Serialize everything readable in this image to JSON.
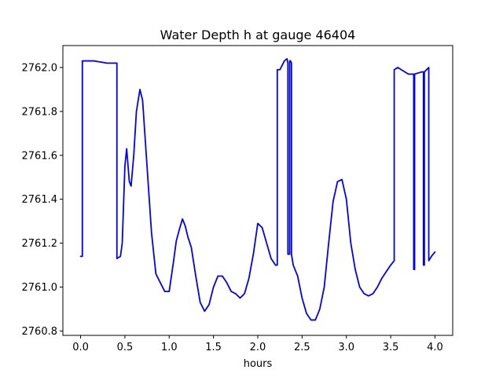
{
  "chart_data": {
    "type": "line",
    "title": "Water Depth h at gauge 46404",
    "xlabel": "hours",
    "ylabel": "",
    "xlim": [
      -0.2,
      4.2
    ],
    "ylim": [
      2760.78,
      2762.1
    ],
    "x_ticks": [
      0.0,
      0.5,
      1.0,
      1.5,
      2.0,
      2.5,
      3.0,
      3.5,
      4.0
    ],
    "x_tick_labels": [
      "0.0",
      "0.5",
      "1.0",
      "1.5",
      "2.0",
      "2.5",
      "3.0",
      "3.5",
      "4.0"
    ],
    "y_ticks": [
      2760.8,
      2761.0,
      2761.2,
      2761.4,
      2761.6,
      2761.8,
      2762.0
    ],
    "y_tick_labels": [
      "2760.8",
      "2761.0",
      "2761.2",
      "2761.4",
      "2761.6",
      "2761.8",
      "2762.0"
    ],
    "grid": false,
    "legend": "none",
    "series": [
      {
        "color": "#0000ff",
        "x": [
          0.0,
          0.02,
          0.02,
          0.15,
          0.3,
          0.41,
          0.41,
          0.45,
          0.47,
          0.5,
          0.52,
          0.55,
          0.57,
          0.6,
          0.63,
          0.67,
          0.7,
          0.75,
          0.8,
          0.85,
          0.9,
          0.95,
          1.0,
          1.05,
          1.08,
          1.12,
          1.15,
          1.18,
          1.21,
          1.25,
          1.3,
          1.35,
          1.4,
          1.45,
          1.5,
          1.55,
          1.6,
          1.65,
          1.7,
          1.75,
          1.8,
          1.85,
          1.9,
          1.95,
          2.0,
          2.05,
          2.1,
          2.15,
          2.2,
          2.22,
          2.22,
          2.25,
          2.3,
          2.33,
          2.34,
          2.34,
          2.36,
          2.36,
          2.37,
          2.38,
          2.38,
          2.4,
          2.45,
          2.5,
          2.55,
          2.6,
          2.65,
          2.7,
          2.75,
          2.8,
          2.85,
          2.9,
          2.95,
          3.0,
          3.05,
          3.1,
          3.15,
          3.2,
          3.25,
          3.3,
          3.35,
          3.4,
          3.45,
          3.5,
          3.54,
          3.54,
          3.58,
          3.62,
          3.7,
          3.76,
          3.76,
          3.77,
          3.77,
          3.85,
          3.87,
          3.87,
          3.88,
          3.88,
          3.93,
          3.93,
          3.96,
          4.0
        ],
        "y": [
          2761.14,
          2761.14,
          2762.03,
          2762.03,
          2762.02,
          2762.02,
          2761.13,
          2761.14,
          2761.2,
          2761.55,
          2761.63,
          2761.48,
          2761.46,
          2761.6,
          2761.8,
          2761.9,
          2761.85,
          2761.55,
          2761.25,
          2761.06,
          2761.02,
          2760.98,
          2760.98,
          2761.12,
          2761.21,
          2761.27,
          2761.31,
          2761.28,
          2761.23,
          2761.18,
          2761.05,
          2760.93,
          2760.89,
          2760.92,
          2761.0,
          2761.05,
          2761.05,
          2761.02,
          2760.98,
          2760.97,
          2760.95,
          2760.97,
          2761.04,
          2761.15,
          2761.29,
          2761.27,
          2761.2,
          2761.13,
          2761.1,
          2761.1,
          2761.99,
          2761.99,
          2762.03,
          2762.04,
          2762.02,
          2761.15,
          2761.15,
          2762.03,
          2762.03,
          2762.02,
          2761.15,
          2761.1,
          2761.05,
          2760.95,
          2760.88,
          2760.85,
          2760.85,
          2760.9,
          2761.0,
          2761.2,
          2761.39,
          2761.48,
          2761.49,
          2761.4,
          2761.2,
          2761.08,
          2761.0,
          2760.97,
          2760.96,
          2760.97,
          2761.0,
          2761.04,
          2761.07,
          2761.1,
          2761.12,
          2761.99,
          2762.0,
          2761.99,
          2761.97,
          2761.97,
          2761.08,
          2761.08,
          2761.97,
          2761.98,
          2761.98,
          2761.1,
          2761.1,
          2761.98,
          2762.0,
          2761.12,
          2761.14,
          2761.16
        ]
      }
    ]
  }
}
